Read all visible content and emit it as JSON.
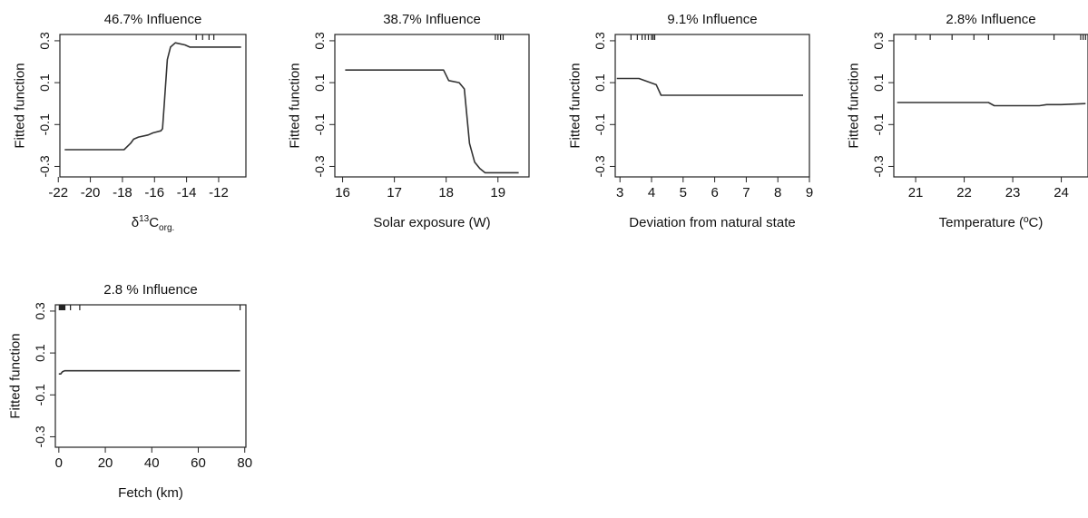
{
  "chart_data": [
    {
      "type": "line",
      "title": "46.7% Influence",
      "xlabel_main": "δ",
      "xlabel_sup": "13",
      "xlabel_mid": "C",
      "xlabel_sub": "org.",
      "ylabel": "Fitted function",
      "xlim": [
        -21.9,
        -10.3
      ],
      "ylim": [
        -0.35,
        0.33
      ],
      "xticks": [
        -22,
        -20,
        -18,
        -16,
        -14,
        -12
      ],
      "yticks": [
        -0.3,
        -0.1,
        0.1,
        0.3
      ],
      "ytick_labels": [
        "-0.3",
        "-0.1",
        "0.1",
        "0.3"
      ],
      "x": [
        -21.6,
        -17.9,
        -17.5,
        -17.3,
        -17.0,
        -16.4,
        -16.1,
        -15.6,
        -15.5,
        -15.4,
        -15.2,
        -15.0,
        -14.7,
        -14.1,
        -13.8,
        -10.6
      ],
      "y": [
        -0.22,
        -0.22,
        -0.19,
        -0.17,
        -0.16,
        -0.15,
        -0.14,
        -0.13,
        -0.12,
        -0.01,
        0.21,
        0.27,
        0.29,
        0.28,
        0.27,
        0.27
      ],
      "rug": [
        -13.4,
        -13.0,
        -12.6,
        -12.3
      ]
    },
    {
      "type": "line",
      "title": "38.7% Influence",
      "xlabel": "Solar exposure (W)",
      "ylabel": "Fitted function",
      "xlim": [
        15.85,
        19.6
      ],
      "ylim": [
        -0.35,
        0.33
      ],
      "xticks": [
        16,
        17,
        18,
        19
      ],
      "yticks": [
        -0.3,
        -0.1,
        0.1,
        0.3
      ],
      "ytick_labels": [
        "-0.3",
        "-0.1",
        "0.1",
        "0.3"
      ],
      "x": [
        16.05,
        17.95,
        18.05,
        18.25,
        18.35,
        18.45,
        18.55,
        18.65,
        18.75,
        19.4
      ],
      "y": [
        0.16,
        0.16,
        0.11,
        0.1,
        0.07,
        -0.19,
        -0.28,
        -0.31,
        -0.33,
        -0.33
      ],
      "rug": [
        18.95,
        19.0,
        19.05,
        19.1
      ]
    },
    {
      "type": "line",
      "title": "9.1% Influence",
      "xlabel": "Deviation from natural state",
      "ylabel": "Fitted function",
      "xlim": [
        2.85,
        9.0
      ],
      "ylim": [
        -0.35,
        0.33
      ],
      "xticks": [
        3,
        4,
        5,
        6,
        7,
        8,
        9
      ],
      "yticks": [
        -0.3,
        -0.1,
        0.1,
        0.3
      ],
      "ytick_labels": [
        "-0.3",
        "-0.1",
        "0.1",
        "0.3"
      ],
      "x": [
        2.9,
        3.6,
        4.15,
        4.3,
        8.8
      ],
      "y": [
        0.12,
        0.12,
        0.09,
        0.04,
        0.04
      ],
      "rug": [
        3.35,
        3.55,
        3.7,
        3.8,
        3.9,
        4.0,
        4.05,
        4.1
      ]
    },
    {
      "type": "line",
      "title": "2.8% Influence",
      "xlabel": "Temperature (ºC)",
      "ylabel": "Fitted function",
      "xlim": [
        20.55,
        24.55
      ],
      "ylim": [
        -0.35,
        0.33
      ],
      "xticks": [
        21,
        22,
        23,
        24
      ],
      "yticks": [
        -0.3,
        -0.1,
        0.1,
        0.3
      ],
      "ytick_labels": [
        "-0.3",
        "-0.1",
        "0.1",
        "0.3"
      ],
      "x": [
        20.62,
        22.5,
        22.62,
        23.55,
        23.7,
        24.0,
        24.5
      ],
      "y": [
        0.005,
        0.005,
        -0.01,
        -0.01,
        -0.005,
        -0.005,
        0.0
      ],
      "rug": [
        21.0,
        21.3,
        21.75,
        22.2,
        22.5,
        23.85,
        24.4,
        24.45,
        24.5
      ]
    },
    {
      "type": "line",
      "title": "2.8 % Influence",
      "xlabel": "Fetch (km)",
      "ylabel": "Fitted function",
      "xlim": [
        -1.5,
        80.5
      ],
      "ylim": [
        -0.35,
        0.33
      ],
      "xticks": [
        0,
        20,
        40,
        60,
        80
      ],
      "yticks": [
        -0.3,
        -0.1,
        0.1,
        0.3
      ],
      "ytick_labels": [
        "-0.3",
        "-0.1",
        "0.1",
        "0.3"
      ],
      "x": [
        0.0,
        0.8,
        1.5,
        2.5,
        78.0
      ],
      "y": [
        0.0,
        0.0,
        0.01,
        0.015,
        0.015
      ],
      "rug": [
        0.2,
        0.6,
        1.0,
        1.4,
        1.8,
        2.2,
        2.6,
        5.0,
        9.0,
        78.0
      ]
    }
  ]
}
